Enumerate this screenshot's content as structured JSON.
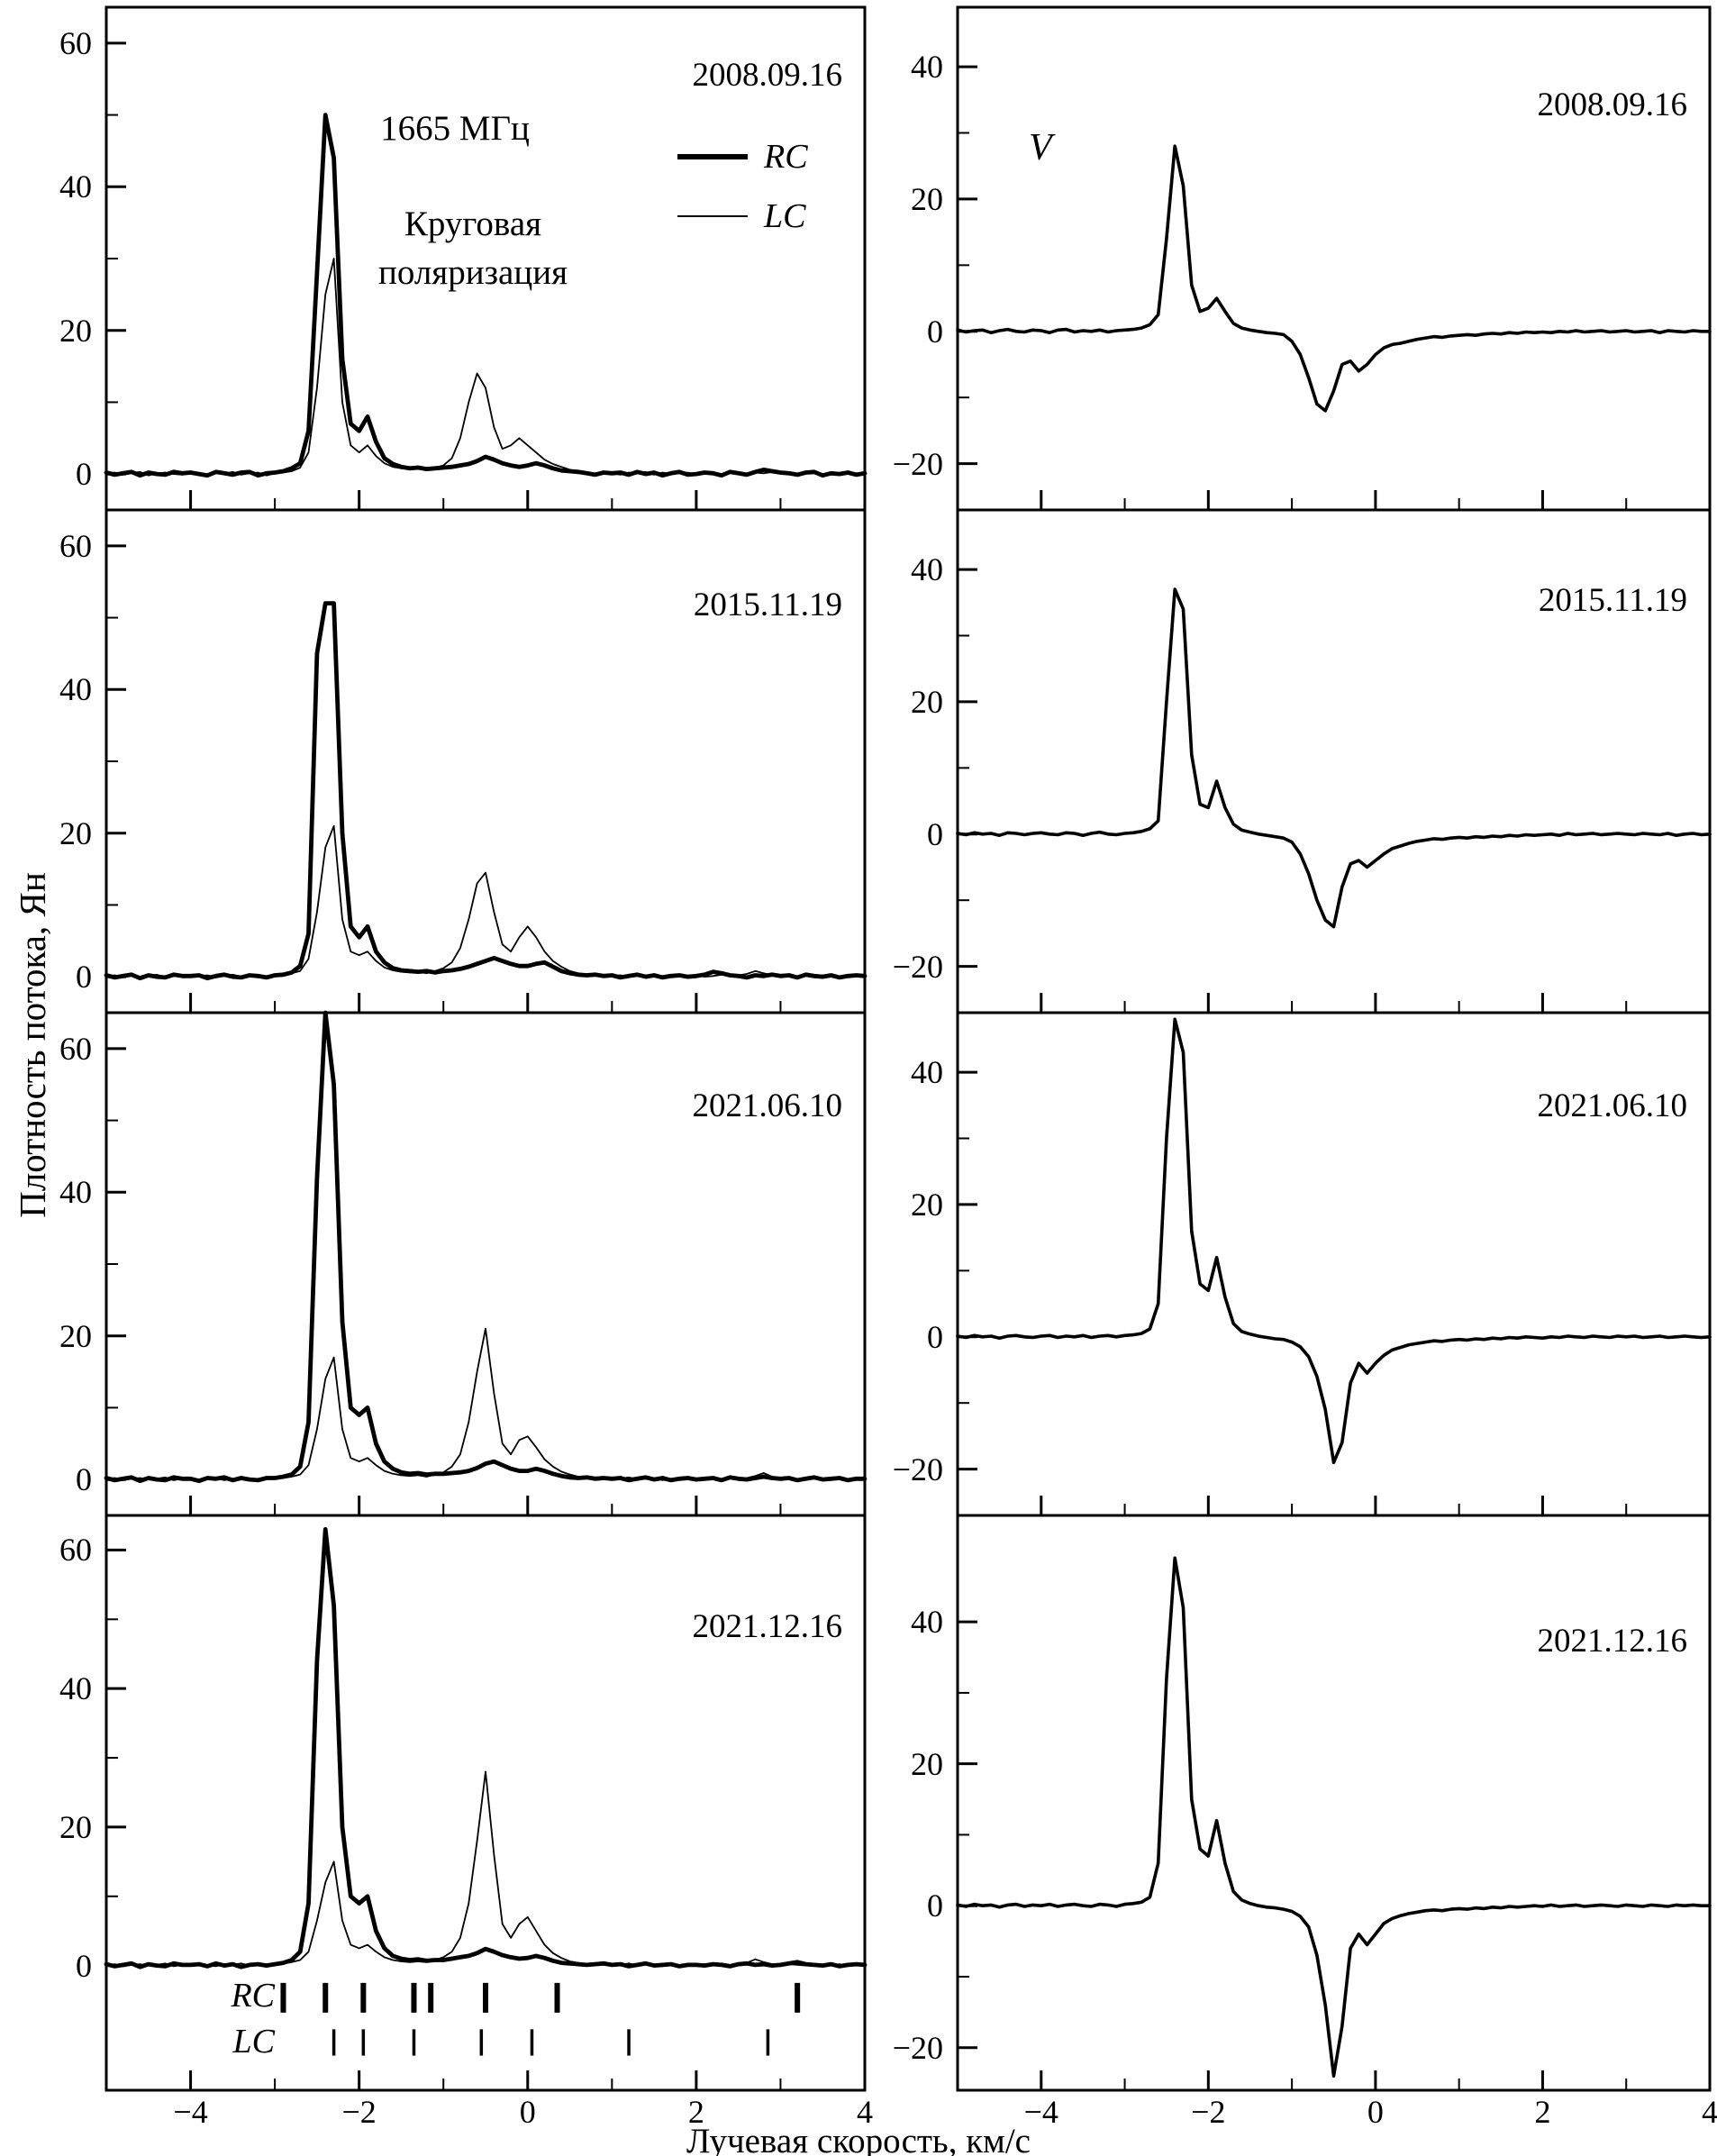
{
  "figure": {
    "xlabel": "Лучевая скорость, км/с",
    "ylabel": "Плотность потока, Ян",
    "freq_label": "1665 МГц",
    "polarization_label": "Круговая поляризация",
    "stokes_v_label": "V",
    "legend": {
      "rc": "RC",
      "lc": "LC"
    },
    "marker_rows": {
      "rc": "RC",
      "lc": "LC"
    }
  },
  "chart_data": {
    "type": "line",
    "xlabel": "Лучевая скорость, км/с",
    "ylabel": "Плотность потока, Ян",
    "xlim": [
      -5,
      4
    ],
    "x_start": -5,
    "x_step": 0.1,
    "x_ticks_major": [
      -4,
      -2,
      0,
      2,
      4
    ],
    "x_ticks_minor": [
      -5,
      -3,
      -1,
      1,
      3
    ],
    "left_panels": {
      "ylim": [
        -5,
        65
      ],
      "ylim_bottom_row": [
        -18,
        65
      ],
      "yticks": [
        0,
        20,
        40,
        60
      ],
      "yticks_minor": [
        10,
        30,
        50
      ],
      "series_names": [
        "RC",
        "LC"
      ]
    },
    "right_panels": {
      "ylim": [
        -27,
        49
      ],
      "ylim_bottom_row": [
        -26,
        55
      ],
      "yticks": [
        -20,
        0,
        20,
        40
      ],
      "yticks_minor": [
        -10,
        10,
        30
      ],
      "series_names": [
        "V"
      ]
    },
    "rows": [
      {
        "date": "2008.09.16",
        "rc": [
          0.2,
          -0.1,
          0.1,
          0.3,
          -0.2,
          0.2,
          0,
          -0.1,
          0.3,
          0.1,
          0.2,
          0,
          -0.2,
          0.3,
          0.1,
          -0.1,
          0.2,
          0.3,
          -0.2,
          0.1,
          0.2,
          0.4,
          0.8,
          1.5,
          6,
          28,
          50,
          44,
          16,
          7,
          6,
          8,
          4.5,
          2.2,
          1.4,
          1,
          0.8,
          0.9,
          0.7,
          0.8,
          0.9,
          1,
          1.2,
          1.4,
          1.8,
          2.4,
          2,
          1.5,
          1.2,
          1,
          1.2,
          1.5,
          1.2,
          0.8,
          0.5,
          0.4,
          0.3,
          0.1,
          -0.1,
          0.2,
          0.1,
          0.2,
          -0.1,
          0.3,
          0,
          0.2,
          -0.2,
          0.1,
          0.3,
          -0.1,
          0,
          0.2,
          0.1,
          -0.2,
          0.3,
          0.1,
          -0.1,
          0.3,
          0.6,
          0.4,
          0.2,
          0.1,
          -0.1,
          0.2,
          0.3,
          -0.2,
          0.1,
          0,
          0.2,
          -0.1,
          0.1
        ],
        "lc": [
          0.1,
          0.2,
          -0.1,
          0.1,
          0.3,
          -0.2,
          0.1,
          0.2,
          0,
          -0.1,
          0.2,
          0.1,
          -0.1,
          0.2,
          0,
          0.3,
          -0.1,
          0.1,
          0.2,
          -0.2,
          0.1,
          0.2,
          0.4,
          0.9,
          3,
          12,
          25,
          30,
          10,
          4,
          3,
          4,
          2.5,
          1.5,
          1,
          0.8,
          0.7,
          0.8,
          0.6,
          0.9,
          1.2,
          2.2,
          5,
          10,
          14,
          12,
          6.5,
          3.5,
          4,
          5,
          4,
          3,
          2,
          1.4,
          1,
          0.6,
          0.4,
          0.2,
          0.1,
          0.2,
          0.1,
          -0.1,
          0.2,
          0.1,
          0.3,
          -0.1,
          0.2,
          0,
          0.1,
          0.2,
          -0.1,
          0.1,
          0.2,
          0,
          0.3,
          0.1,
          -0.2,
          0.2,
          0.1,
          0.3,
          0.1,
          0.2,
          -0.1,
          0.1,
          0.2,
          0,
          0.1,
          -0.1,
          0.2,
          0.1,
          0
        ],
        "v": [
          0.2,
          -0.1,
          0.1,
          0.2,
          -0.2,
          0.1,
          0.3,
          0,
          -0.1,
          0.2,
          0.1,
          -0.2,
          0.2,
          0.3,
          -0.1,
          0.1,
          0,
          0.2,
          -0.1,
          0.1,
          0.2,
          0.3,
          0.5,
          1,
          2.5,
          14,
          28,
          22,
          7,
          3,
          3.5,
          5,
          3,
          1.2,
          0.5,
          0.2,
          0,
          -0.2,
          -0.3,
          -0.5,
          -1.5,
          -3.5,
          -7,
          -11,
          -12,
          -9,
          -5,
          -4.5,
          -6,
          -5,
          -3.5,
          -2.5,
          -2,
          -1.8,
          -1.5,
          -1.2,
          -1,
          -0.8,
          -0.9,
          -0.7,
          -0.6,
          -0.5,
          -0.6,
          -0.4,
          -0.3,
          -0.4,
          -0.2,
          -0.3,
          -0.1,
          -0.2,
          -0.1,
          -0.2,
          0,
          -0.1,
          0.1,
          -0.1,
          0,
          0.1,
          -0.1,
          0,
          0.1,
          -0.1,
          0,
          0.1,
          -0.2,
          0.1,
          0,
          -0.1,
          0.1,
          0,
          0
        ]
      },
      {
        "date": "2015.11.19",
        "rc": [
          0.2,
          -0.1,
          0.1,
          0.3,
          -0.2,
          0.2,
          0,
          -0.1,
          0.3,
          0.1,
          0.1,
          0.2,
          -0.2,
          0.1,
          0.3,
          0,
          -0.1,
          0.2,
          0.1,
          -0.1,
          0.2,
          0.3,
          0.6,
          1.5,
          6,
          45,
          52,
          52,
          20,
          7,
          5.5,
          7,
          3.5,
          2,
          1.2,
          0.9,
          0.8,
          0.7,
          0.8,
          0.6,
          0.8,
          0.9,
          1.1,
          1.4,
          1.8,
          2.2,
          2.6,
          2.2,
          1.8,
          1.5,
          1.5,
          1.8,
          2,
          1.4,
          0.8,
          0.5,
          0.3,
          0.2,
          0.3,
          0.1,
          0.2,
          -0.1,
          0.1,
          0.3,
          0,
          0.2,
          -0.1,
          0.1,
          0.2,
          0,
          0.1,
          0.3,
          0.7,
          0.5,
          0.2,
          0.1,
          -0.1,
          0.2,
          0.1,
          0.3,
          0.1,
          0.2,
          -0.1,
          0.3,
          0.1,
          0,
          0.2,
          -0.1,
          0.1,
          0.2,
          0.1
        ],
        "lc": [
          0.1,
          0.2,
          -0.1,
          0.2,
          0,
          0.1,
          0.3,
          -0.1,
          0.1,
          0.2,
          0,
          0.1,
          0.2,
          -0.1,
          0.1,
          0.3,
          0,
          0.2,
          -0.1,
          0.1,
          0.2,
          0.3,
          0.5,
          0.8,
          2.5,
          9,
          18,
          21,
          8,
          3.5,
          3,
          3.5,
          2.2,
          1.3,
          0.9,
          0.7,
          0.6,
          0.7,
          0.5,
          0.8,
          1.2,
          2,
          4,
          8,
          13,
          14.5,
          9,
          4.5,
          3.5,
          5.5,
          7,
          5.5,
          3.5,
          2.2,
          1.4,
          0.8,
          0.5,
          0.3,
          0.2,
          0.3,
          0.1,
          0.2,
          0,
          0.1,
          -0.1,
          0.2,
          0.1,
          0.3,
          0,
          0.1,
          0.2,
          0,
          0.1,
          0.3,
          0.1,
          0.2,
          0.4,
          0.8,
          0.5,
          0.2,
          0.1,
          0.2,
          0,
          0.1,
          -0.1,
          0.2,
          0.1,
          0,
          0.2,
          0.1,
          0
        ],
        "v": [
          0.1,
          -0.1,
          0.2,
          0,
          0.1,
          -0.2,
          0.2,
          0.1,
          -0.1,
          0.1,
          0.2,
          0,
          -0.1,
          0.2,
          0.1,
          -0.2,
          0.1,
          0.3,
          0,
          -0.1,
          0.1,
          0.2,
          0.4,
          0.8,
          2,
          20,
          37,
          34,
          12,
          4.5,
          4,
          8,
          4,
          1.5,
          0.6,
          0.3,
          0,
          -0.2,
          -0.4,
          -0.6,
          -1.2,
          -3,
          -6,
          -10,
          -13,
          -14,
          -8,
          -4.5,
          -4,
          -5,
          -4,
          -3,
          -2.2,
          -1.8,
          -1.4,
          -1.1,
          -0.9,
          -0.7,
          -0.8,
          -0.6,
          -0.5,
          -0.6,
          -0.4,
          -0.5,
          -0.3,
          -0.4,
          -0.2,
          -0.3,
          -0.1,
          -0.2,
          -0.1,
          0,
          -0.2,
          0.1,
          -0.1,
          0,
          0.1,
          -0.1,
          0,
          0.1,
          0,
          -0.1,
          0.1,
          0,
          -0.1,
          0.1,
          -0.2,
          0,
          0.1,
          -0.1,
          0
        ]
      },
      {
        "date": "2021.06.10",
        "rc": [
          0.2,
          -0.1,
          0.1,
          0.3,
          -0.2,
          0.2,
          0,
          -0.1,
          0.3,
          0.1,
          0.1,
          -0.2,
          0.2,
          0.1,
          0.3,
          -0.1,
          0.2,
          0,
          -0.1,
          0.2,
          0.2,
          0.4,
          0.7,
          1.8,
          8,
          42,
          65,
          55,
          22,
          10,
          9,
          10,
          5,
          2.5,
          1.5,
          1,
          0.8,
          0.9,
          0.7,
          0.8,
          0.8,
          0.9,
          1,
          1.2,
          1.6,
          2.2,
          2.5,
          2,
          1.5,
          1.2,
          1.2,
          1.5,
          1.2,
          0.8,
          0.5,
          0.3,
          0.2,
          0.3,
          0.1,
          0.2,
          0.1,
          0.2,
          -0.1,
          0.1,
          0.3,
          0,
          0.2,
          -0.1,
          0.1,
          0.2,
          0,
          0.1,
          0.2,
          -0.1,
          0.3,
          0.1,
          0,
          0.2,
          0.4,
          0.2,
          0.1,
          0.2,
          -0.1,
          0.1,
          0.3,
          0,
          0.1,
          0.2,
          -0.1,
          0.1,
          0.1
        ],
        "lc": [
          0.1,
          0.2,
          -0.1,
          0.1,
          0.2,
          0,
          0.1,
          0.3,
          -0.1,
          0.1,
          0.2,
          0,
          0.1,
          0.2,
          -0.1,
          0.1,
          0.3,
          0,
          0.1,
          0.2,
          0.1,
          0.2,
          0.4,
          0.7,
          2,
          7,
          14,
          17,
          7,
          3,
          2.5,
          3,
          2,
          1.2,
          0.8,
          0.6,
          0.5,
          0.6,
          0.4,
          0.7,
          1,
          1.8,
          3.5,
          8,
          15,
          21,
          12,
          5,
          3.5,
          5.5,
          6,
          4.5,
          2.8,
          1.8,
          1.1,
          0.7,
          0.4,
          0.2,
          0.3,
          0.1,
          0.2,
          0.1,
          0.3,
          0,
          0.1,
          0.2,
          -0.1,
          0.1,
          0.2,
          0,
          0.1,
          0.2,
          0,
          0.1,
          0.3,
          0.1,
          0.2,
          0.5,
          0.9,
          0.4,
          0.2,
          0.1,
          0,
          0.2,
          0.1,
          -0.1,
          0.1,
          0.2,
          0,
          0.1,
          0
        ],
        "v": [
          0.1,
          -0.1,
          0.2,
          0,
          0.1,
          -0.2,
          0.1,
          0.2,
          0,
          -0.1,
          0.1,
          0.2,
          -0.1,
          0.1,
          0,
          0.2,
          -0.1,
          0.1,
          0.2,
          0,
          0.2,
          0.3,
          0.5,
          1.2,
          5,
          30,
          48,
          43,
          16,
          8,
          7,
          12,
          6,
          2,
          0.8,
          0.4,
          0.1,
          -0.1,
          -0.3,
          -0.4,
          -0.8,
          -1.5,
          -3,
          -6,
          -11,
          -19,
          -16,
          -7,
          -4,
          -5.5,
          -4,
          -2.8,
          -2,
          -1.6,
          -1.2,
          -1,
          -0.8,
          -0.6,
          -0.7,
          -0.5,
          -0.4,
          -0.5,
          -0.3,
          -0.4,
          -0.2,
          -0.3,
          -0.1,
          -0.2,
          0,
          -0.1,
          -0.2,
          0,
          -0.1,
          0.1,
          0,
          -0.1,
          0.1,
          0,
          -0.1,
          0.1,
          0,
          0.1,
          -0.1,
          0,
          0.1,
          -0.1,
          0,
          0.1,
          0,
          -0.1,
          0
        ]
      },
      {
        "date": "2021.12.16",
        "rc": [
          0.2,
          -0.1,
          0.1,
          0.3,
          -0.2,
          0.2,
          0,
          -0.1,
          0.3,
          0.1,
          0.1,
          0.2,
          -0.1,
          0.3,
          0,
          0.2,
          -0.2,
          0.1,
          0.2,
          0,
          0.2,
          0.4,
          0.8,
          2,
          9,
          44,
          63,
          52,
          20,
          10,
          9,
          10,
          5,
          2.5,
          1.4,
          1,
          0.8,
          0.9,
          0.7,
          0.8,
          0.8,
          1,
          1.2,
          1.4,
          1.8,
          2.4,
          2,
          1.5,
          1.2,
          1,
          1.1,
          1.4,
          1.1,
          0.7,
          0.4,
          0.3,
          0.2,
          0.1,
          0.2,
          0.3,
          0.1,
          0.2,
          -0.1,
          0.1,
          0.3,
          0,
          0.1,
          0.2,
          -0.1,
          0.1,
          0.1,
          0,
          0.2,
          0.1,
          -0.1,
          0.2,
          0.3,
          0.1,
          0.2,
          0,
          0.1,
          0.3,
          0.5,
          0.2,
          0.1,
          0,
          0.2,
          -0.1,
          0.1,
          0.2,
          0.1
        ],
        "lc": [
          0.1,
          0.2,
          -0.1,
          0.1,
          0.2,
          0,
          0.1,
          0.3,
          -0.1,
          0.1,
          0,
          0.2,
          0.1,
          -0.1,
          0.2,
          0.1,
          0.3,
          0,
          0.1,
          0.2,
          0.2,
          0.3,
          0.5,
          0.8,
          2,
          6.5,
          12,
          15,
          6.5,
          3,
          2.5,
          3,
          2,
          1.2,
          0.8,
          0.6,
          0.5,
          0.6,
          0.5,
          0.8,
          1.2,
          2,
          4,
          9,
          18,
          28,
          16,
          6,
          4,
          6,
          7,
          5,
          3,
          1.8,
          1.1,
          0.6,
          0.4,
          0.2,
          0.3,
          0.1,
          0.2,
          0.1,
          0.3,
          0,
          0.2,
          0.1,
          -0.1,
          0.2,
          0.1,
          0,
          0.1,
          0.2,
          0,
          0.3,
          0.1,
          0.2,
          0.4,
          0.9,
          0.5,
          0.2,
          0.1,
          0.2,
          0.1,
          0,
          0.2,
          -0.1,
          0.1,
          0.2,
          0,
          0.1,
          0
        ],
        "v": [
          0.1,
          -0.1,
          0.2,
          0,
          0.1,
          -0.2,
          0.1,
          0.2,
          -0.1,
          0.1,
          0,
          0.2,
          -0.1,
          0.1,
          0.2,
          0,
          -0.1,
          0.2,
          0.1,
          -0.1,
          0.2,
          0.3,
          0.5,
          1.2,
          6,
          32,
          49,
          42,
          15,
          8,
          7,
          12,
          6,
          2,
          0.8,
          0.3,
          0,
          -0.2,
          -0.3,
          -0.5,
          -0.8,
          -1.5,
          -3,
          -7,
          -14,
          -24,
          -17,
          -6,
          -4,
          -5.5,
          -4,
          -2.5,
          -1.8,
          -1.4,
          -1.1,
          -0.9,
          -0.7,
          -0.6,
          -0.7,
          -0.5,
          -0.4,
          -0.5,
          -0.3,
          -0.4,
          -0.2,
          -0.3,
          -0.1,
          -0.2,
          -0.1,
          0,
          -0.1,
          0.1,
          -0.1,
          0,
          0.1,
          -0.1,
          0,
          0.1,
          0,
          -0.1,
          0.1,
          0,
          -0.1,
          0.1,
          0,
          -0.1,
          0.1,
          0,
          0.1,
          0,
          0
        ]
      }
    ],
    "feature_markers": {
      "rc": [
        -2.9,
        -2.4,
        -1.95,
        -1.35,
        -1.15,
        -0.5,
        0.35,
        3.2
      ],
      "lc": [
        -2.3,
        -1.95,
        -1.35,
        -0.55,
        0.05,
        1.2,
        2.85
      ]
    }
  }
}
